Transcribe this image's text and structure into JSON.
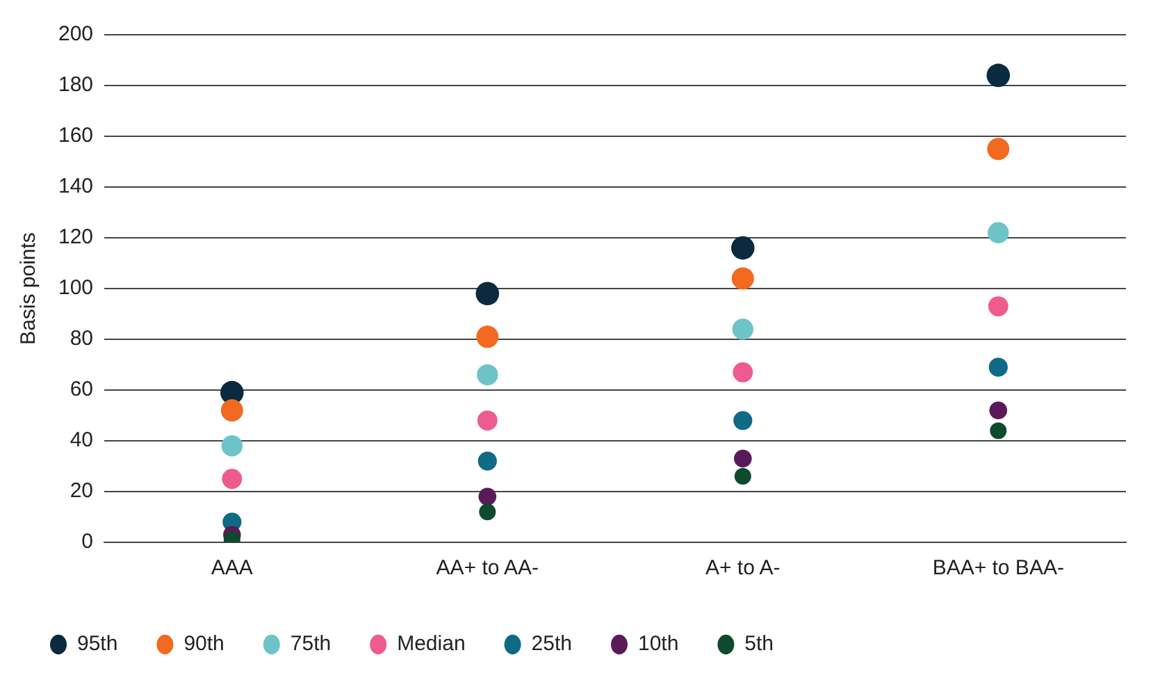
{
  "chart_data": {
    "type": "scatter",
    "ylabel": "Basis points",
    "categories": [
      "AAA",
      "AA+ to AA-",
      "A+ to A-",
      "BAA+ to BAA-"
    ],
    "ylim": [
      0,
      200
    ],
    "yticks": [
      0,
      20,
      40,
      60,
      80,
      100,
      120,
      140,
      160,
      180,
      200
    ],
    "grid": "y",
    "legend": "bottom",
    "marker": "circle",
    "series": [
      {
        "name": "95th",
        "color": "#0b2a3f",
        "values": [
          59,
          98,
          116,
          184
        ]
      },
      {
        "name": "90th",
        "color": "#f26a21",
        "values": [
          52,
          81,
          104,
          155
        ]
      },
      {
        "name": "75th",
        "color": "#6cc4c9",
        "values": [
          38,
          66,
          84,
          122
        ]
      },
      {
        "name": "Median",
        "color": "#ee5b8e",
        "values": [
          25,
          48,
          67,
          93
        ]
      },
      {
        "name": "25th",
        "color": "#0f6a85",
        "values": [
          8,
          32,
          48,
          69
        ]
      },
      {
        "name": "10th",
        "color": "#5a1a5a",
        "values": [
          3,
          18,
          33,
          52
        ]
      },
      {
        "name": "5th",
        "color": "#0d4a2e",
        "values": [
          1,
          12,
          26,
          44
        ]
      }
    ]
  }
}
